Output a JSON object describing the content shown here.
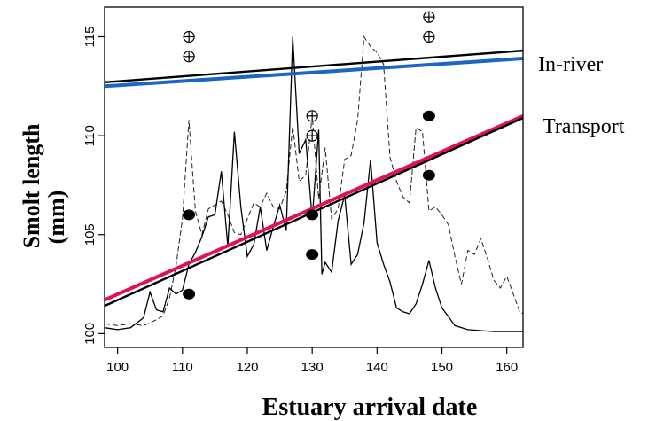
{
  "chart_data": {
    "type": "line",
    "xlabel": "Estuary arrival date",
    "ylabel_line1": "Smolt length",
    "ylabel_line2": "(mm)",
    "xlim": [
      98,
      162.5
    ],
    "ylim": [
      99.3,
      116.5
    ],
    "xticks": [
      "100",
      "110",
      "120",
      "130",
      "140",
      "150",
      "160"
    ],
    "yticks": [
      "100",
      "105",
      "110",
      "115"
    ],
    "grid": false,
    "legend": "none",
    "regression_lines": [
      {
        "name": "In-river",
        "color": "#000000",
        "points": [
          [
            98,
            112.7
          ],
          [
            162.5,
            114.3
          ]
        ]
      },
      {
        "name": "",
        "color": "#1a66c2",
        "points": [
          [
            98,
            112.5
          ],
          [
            162.5,
            113.9
          ]
        ]
      },
      {
        "name": "Transport",
        "color": "#e0105e",
        "points": [
          [
            98,
            101.7
          ],
          [
            162.5,
            111.0
          ]
        ]
      },
      {
        "name": "",
        "color": "#000000",
        "points": [
          [
            98,
            101.4
          ],
          [
            162.5,
            110.9
          ]
        ]
      }
    ],
    "inriver_points": [
      [
        111,
        115
      ],
      [
        111,
        114
      ],
      [
        130,
        111
      ],
      [
        130,
        110
      ],
      [
        148,
        116
      ],
      [
        148,
        115
      ]
    ],
    "transport_points": [
      [
        111,
        106
      ],
      [
        111,
        102
      ],
      [
        130,
        106
      ],
      [
        130,
        104
      ],
      [
        148,
        111
      ],
      [
        148,
        108
      ]
    ],
    "solid_series": [
      [
        98,
        100.3
      ],
      [
        100,
        100.2
      ],
      [
        102,
        100.3
      ],
      [
        104,
        100.8
      ],
      [
        105,
        102.1
      ],
      [
        106,
        101.2
      ],
      [
        107,
        101.1
      ],
      [
        108,
        102.3
      ],
      [
        109,
        102.0
      ],
      [
        110,
        102.2
      ],
      [
        111,
        103.5
      ],
      [
        112,
        104.1
      ],
      [
        113,
        104.9
      ],
      [
        114,
        105.9
      ],
      [
        115,
        106.0
      ],
      [
        116,
        108.2
      ],
      [
        117,
        104.4
      ],
      [
        118,
        110.2
      ],
      [
        119,
        106.4
      ],
      [
        120,
        103.9
      ],
      [
        121,
        104.5
      ],
      [
        122,
        106.4
      ],
      [
        123,
        104.2
      ],
      [
        124,
        105.4
      ],
      [
        125,
        106.5
      ],
      [
        126,
        105.2
      ],
      [
        127,
        115.0
      ],
      [
        128,
        109.1
      ],
      [
        129,
        109.8
      ],
      [
        130,
        105.8
      ],
      [
        131,
        110.3
      ],
      [
        131.5,
        103.0
      ],
      [
        132,
        103.6
      ],
      [
        133,
        103.1
      ],
      [
        134,
        105.7
      ],
      [
        135,
        107.0
      ],
      [
        136,
        103.5
      ],
      [
        137,
        104.0
      ],
      [
        138,
        105.6
      ],
      [
        139,
        108.8
      ],
      [
        140,
        104.6
      ],
      [
        141,
        103.5
      ],
      [
        142,
        102.6
      ],
      [
        143,
        101.3
      ],
      [
        144,
        101.1
      ],
      [
        145,
        101.0
      ],
      [
        146,
        101.5
      ],
      [
        147,
        102.5
      ],
      [
        148,
        103.7
      ],
      [
        149,
        102.3
      ],
      [
        150,
        101.3
      ],
      [
        152,
        100.4
      ],
      [
        154,
        100.2
      ],
      [
        156,
        100.15
      ],
      [
        158,
        100.1
      ],
      [
        160,
        100.1
      ],
      [
        162.5,
        100.1
      ]
    ],
    "dashed_series": [
      [
        98,
        100.5
      ],
      [
        100,
        100.4
      ],
      [
        102,
        100.5
      ],
      [
        104,
        100.4
      ],
      [
        106,
        100.7
      ],
      [
        107,
        100.9
      ],
      [
        108,
        101.8
      ],
      [
        109,
        103.4
      ],
      [
        110,
        105.8
      ],
      [
        111,
        110.8
      ],
      [
        112,
        106.2
      ],
      [
        113,
        105.0
      ],
      [
        114,
        106.3
      ],
      [
        115,
        106.5
      ],
      [
        116,
        106.7
      ],
      [
        117,
        106.0
      ],
      [
        118,
        105.1
      ],
      [
        119,
        105.0
      ],
      [
        120,
        105.8
      ],
      [
        121,
        106.6
      ],
      [
        122,
        106.4
      ],
      [
        123,
        107.1
      ],
      [
        124,
        106.4
      ],
      [
        125,
        106.3
      ],
      [
        126,
        107.2
      ],
      [
        127,
        110.5
      ],
      [
        128,
        107.7
      ],
      [
        129,
        108.0
      ],
      [
        130,
        111.0
      ],
      [
        131,
        106.8
      ],
      [
        132,
        109.4
      ],
      [
        133,
        105.8
      ],
      [
        134,
        106.3
      ],
      [
        135,
        108.8
      ],
      [
        136,
        109.0
      ],
      [
        137,
        110.8
      ],
      [
        138,
        115.0
      ],
      [
        139,
        114.5
      ],
      [
        140,
        114.2
      ],
      [
        141,
        113.6
      ],
      [
        142,
        108.9
      ],
      [
        143,
        107.7
      ],
      [
        144,
        106.9
      ],
      [
        145,
        106.6
      ],
      [
        146,
        110.4
      ],
      [
        147,
        110.2
      ],
      [
        148,
        106.2
      ],
      [
        149,
        106.4
      ],
      [
        150,
        106.0
      ],
      [
        151,
        105.5
      ],
      [
        152,
        103.9
      ],
      [
        153,
        102.5
      ],
      [
        154,
        104.2
      ],
      [
        155,
        104.0
      ],
      [
        156,
        104.8
      ],
      [
        157,
        103.8
      ],
      [
        158,
        102.7
      ],
      [
        159,
        102.3
      ],
      [
        160,
        102.9
      ],
      [
        161,
        102.0
      ],
      [
        162,
        101.1
      ],
      [
        162.5,
        101.0
      ]
    ]
  }
}
